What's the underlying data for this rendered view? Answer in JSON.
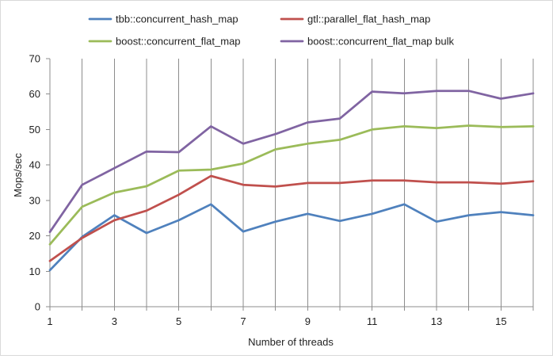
{
  "chart_data": {
    "type": "line",
    "title": "",
    "xlabel": "Number of threads",
    "ylabel": "Mops/sec",
    "xlim": [
      1,
      16
    ],
    "ylim": [
      0,
      70
    ],
    "x_ticks": [
      1,
      3,
      5,
      7,
      9,
      11,
      13,
      15
    ],
    "y_ticks": [
      0,
      10,
      20,
      30,
      40,
      50,
      60,
      70
    ],
    "grid": "vertical",
    "legend_position": "top",
    "x": [
      1,
      2,
      3,
      4,
      5,
      6,
      7,
      8,
      9,
      10,
      11,
      12,
      13,
      14,
      15,
      16
    ],
    "series": [
      {
        "name": "tbb::concurrent_hash_map",
        "color": "#4f81bd",
        "values": [
          10.3,
          19.7,
          25.8,
          20.8,
          24.4,
          28.9,
          21.2,
          24.0,
          26.2,
          24.2,
          26.2,
          28.9,
          24.0,
          25.8,
          26.7,
          25.8
        ]
      },
      {
        "name": "gtl::parallel_flat_hash_map",
        "color": "#c0504d",
        "values": [
          12.9,
          19.4,
          24.4,
          27.1,
          31.6,
          36.9,
          34.4,
          33.9,
          34.9,
          34.9,
          35.6,
          35.6,
          35.1,
          35.1,
          34.7,
          35.4
        ]
      },
      {
        "name": "boost::concurrent_flat_map",
        "color": "#9bbb59",
        "values": [
          17.6,
          28.2,
          32.2,
          34.0,
          38.4,
          38.7,
          40.4,
          44.4,
          46.0,
          47.1,
          50.0,
          50.9,
          50.4,
          51.1,
          50.7,
          50.9
        ]
      },
      {
        "name": "boost::concurrent_flat_map bulk",
        "color": "#8064a2",
        "values": [
          21.1,
          34.4,
          39.1,
          43.8,
          43.6,
          50.9,
          46.0,
          48.7,
          52.0,
          53.1,
          60.7,
          60.2,
          60.9,
          60.9,
          58.7,
          60.2
        ]
      }
    ]
  },
  "colors": {
    "grid": "#8c8c8c",
    "axis": "#8c8c8c"
  }
}
